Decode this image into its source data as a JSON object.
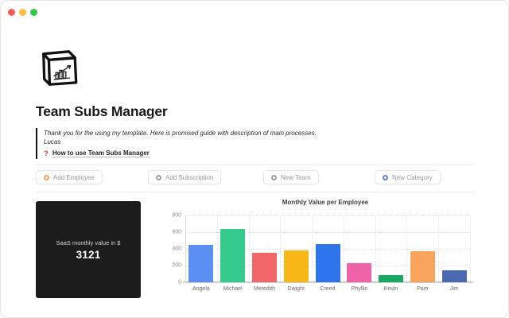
{
  "window_controls": {
    "close_color": "#fc5b57",
    "minimize_color": "#fdbe41",
    "zoom_color": "#34c749"
  },
  "page": {
    "title": "Team Subs Manager",
    "icon": "cube-with-bar-chart"
  },
  "quote": {
    "line1": "Thank you for the using my template. Here is promised guide with description of main processes.",
    "line2": "Lucas"
  },
  "guide": {
    "icon": "?",
    "icon_color": "#e03e3e",
    "label": "How to use Team Subs Manager"
  },
  "buttons": [
    {
      "label": "Add Employee",
      "icon": "circle-ring-icon",
      "icon_color": "#f0a269"
    },
    {
      "label": "Add Subscription",
      "icon": "circle-ring-icon",
      "icon_color": "#9b9fa4"
    },
    {
      "label": "New Team",
      "icon": "circle-ring-icon",
      "icon_color": "#9b9fa4"
    },
    {
      "label": "New Category",
      "icon": "circle-ring-icon",
      "icon_color": "#5f82d4"
    }
  ],
  "kpi": {
    "label": "SaaS monthly value in $",
    "value": "3121",
    "bg": "#1c1c1c"
  },
  "chart_data": {
    "type": "bar",
    "title": "Monthly Value per Employee",
    "categories": [
      "Angela",
      "Michael",
      "Meredith",
      "Dwight",
      "Creed",
      "Phyllis",
      "Kevin",
      "Pam",
      "Jim"
    ],
    "values": [
      450,
      643,
      352,
      381,
      459,
      231,
      87,
      373,
      145
    ],
    "colors": [
      "#5b8ff2",
      "#35cb8d",
      "#f16666",
      "#f8b717",
      "#2e75ec",
      "#ee62a8",
      "#17a964",
      "#f9a45c",
      "#4b69b1"
    ],
    "xlabel": "",
    "ylabel": "",
    "ylim": [
      0,
      800
    ],
    "yticks": [
      0,
      200,
      400,
      600,
      800
    ],
    "grid": "dotted",
    "legend": false
  }
}
